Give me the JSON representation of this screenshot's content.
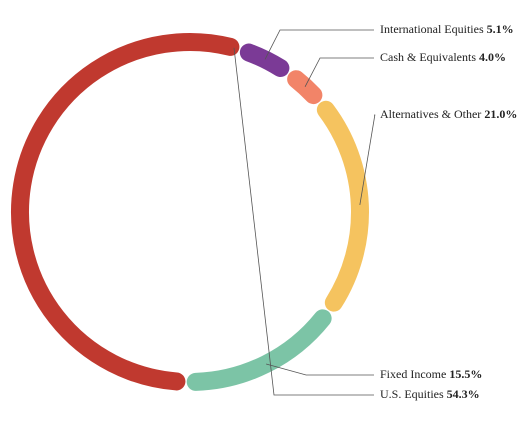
{
  "chart_data": {
    "type": "donut",
    "categories": [
      "International Equities",
      "Cash & Equivalents",
      "Alternatives & Other",
      "Fixed Income",
      "U.S. Equities"
    ],
    "values": [
      5.1,
      4.0,
      21.0,
      15.5,
      54.3
    ],
    "value_labels": [
      "5.1%",
      "4.0%",
      "21.0%",
      "15.5%",
      "54.3%"
    ],
    "colors": [
      "#7b3a96",
      "#f28468",
      "#f5c35f",
      "#7cc4a6",
      "#c0392f"
    ]
  }
}
